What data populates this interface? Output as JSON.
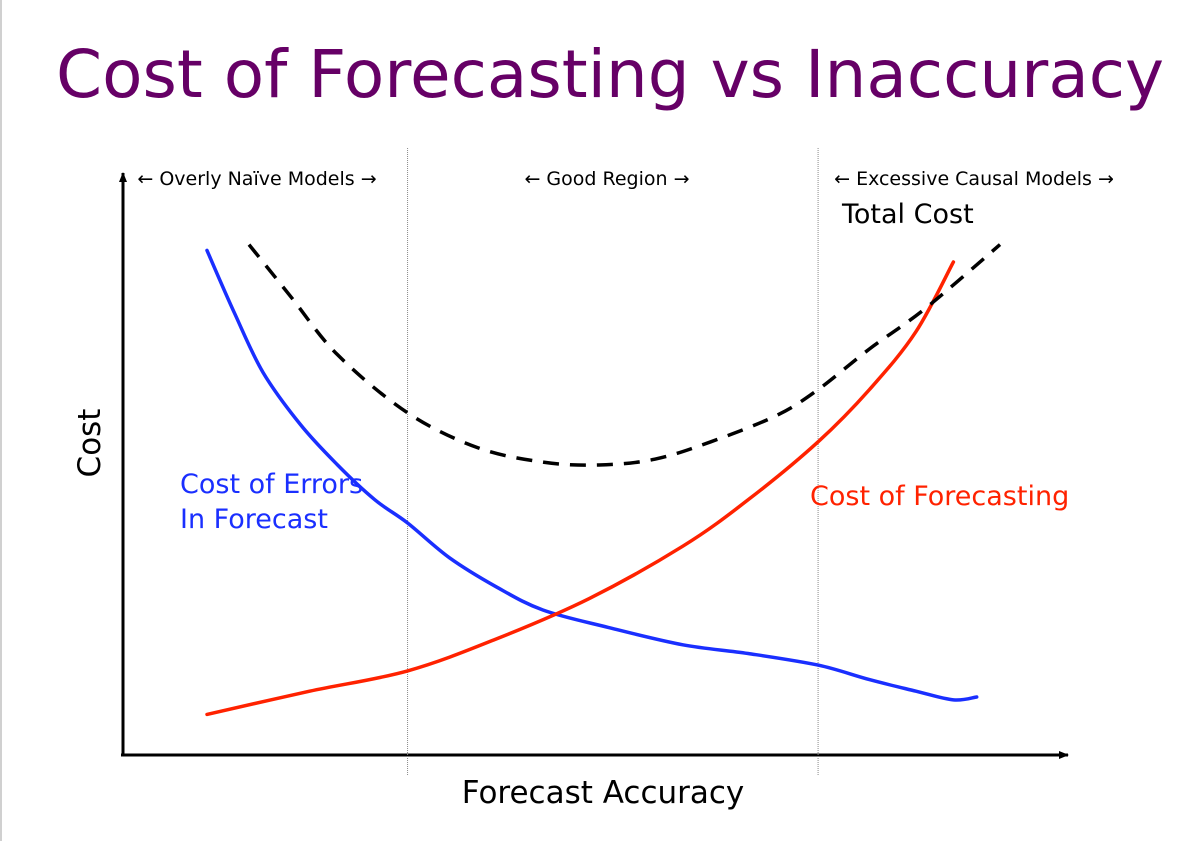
{
  "slide": {
    "title": "Cost of Forecasting vs Inaccuracy"
  },
  "colors": {
    "title": "#660066",
    "errors_curve": "#1a2fff",
    "forecasting_curve": "#ff2200",
    "total_curve": "#000000",
    "axis": "#000000",
    "divider": "#888888"
  },
  "chart_data": {
    "type": "line",
    "title": "",
    "xlabel": "Forecast Accuracy",
    "ylabel": "Cost",
    "region_labels": [
      "← Overly Naïve Models →",
      "← Good Region →",
      "← Excessive Causal Models →"
    ],
    "curve_labels": {
      "total": "Total Cost",
      "errors_line1": "Cost of Errors",
      "errors_line2": "In Forecast",
      "forecasting": "Cost of Forecasting"
    },
    "xlim": [
      0,
      100
    ],
    "ylim": [
      0,
      100
    ],
    "region_bounds": [
      30.5,
      74.5
    ],
    "series": [
      {
        "name": "Cost of Errors In Forecast",
        "key": "errors",
        "style": "solid",
        "x": [
          9,
          12,
          15,
          19,
          23,
          27,
          30.5,
          35,
          40,
          45,
          52,
          60,
          67,
          74.5,
          80,
          85,
          89,
          91.5
        ],
        "y": [
          87,
          76,
          66,
          57,
          50,
          44,
          40,
          34,
          29,
          25,
          22,
          19,
          17.5,
          15.5,
          13,
          11,
          9.5,
          10
        ]
      },
      {
        "name": "Cost of Forecasting",
        "key": "forecasting",
        "style": "solid",
        "x": [
          9,
          20,
          30.5,
          40,
          50,
          60,
          67,
          74.5,
          80,
          85,
          89
        ],
        "y": [
          7,
          11,
          14.5,
          20,
          27,
          36,
          44,
          54,
          63,
          73,
          85
        ]
      },
      {
        "name": "Total Cost",
        "key": "total",
        "style": "dashed",
        "x": [
          13.5,
          18,
          23,
          30.5,
          38,
          45,
          51,
          57,
          63,
          70,
          74.5,
          80,
          86,
          94
        ],
        "y": [
          88,
          79,
          69,
          59,
          53,
          50.5,
          50,
          51,
          54,
          58.5,
          63,
          70,
          77,
          88
        ]
      }
    ]
  }
}
